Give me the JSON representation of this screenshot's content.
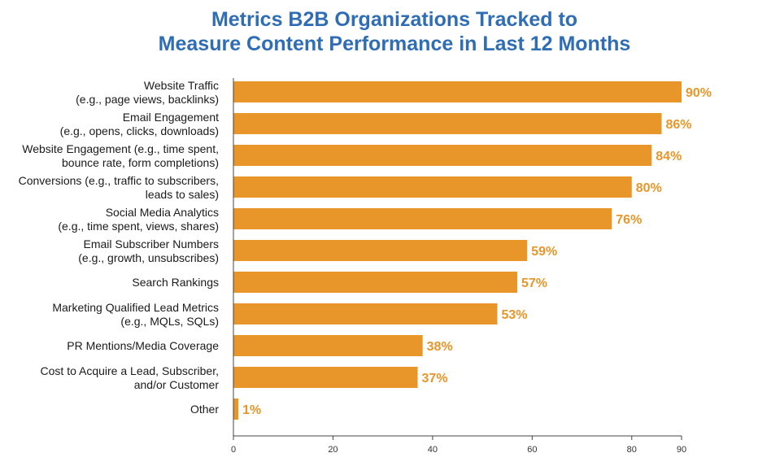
{
  "chart_data": {
    "type": "bar",
    "orientation": "horizontal",
    "title": [
      "Metrics B2B Organizations Tracked to",
      "Measure Content Performance in Last 12 Months"
    ],
    "categories": [
      [
        "Website Traffic",
        "(e.g., page views, backlinks)"
      ],
      [
        "Email Engagement",
        "(e.g., opens, clicks, downloads)"
      ],
      [
        "Website Engagement (e.g., time spent,",
        "bounce rate, form completions)"
      ],
      [
        "Conversions (e.g., traffic to subscribers,",
        "leads to sales)"
      ],
      [
        "Social Media Analytics",
        "(e.g., time spent, views, shares)"
      ],
      [
        "Email Subscriber Numbers",
        "(e.g., growth, unsubscribes)"
      ],
      [
        "Search Rankings"
      ],
      [
        "Marketing Qualified Lead Metrics",
        "(e.g., MQLs, SQLs)"
      ],
      [
        "PR Mentions/Media Coverage"
      ],
      [
        "Cost to Acquire a Lead, Subscriber,",
        "and/or Customer"
      ],
      [
        "Other"
      ]
    ],
    "values": [
      90,
      86,
      84,
      80,
      76,
      59,
      57,
      53,
      38,
      37,
      1
    ],
    "value_labels": [
      "90%",
      "86%",
      "84%",
      "80%",
      "76%",
      "59%",
      "57%",
      "53%",
      "38%",
      "37%",
      "1%"
    ],
    "xlim": [
      0,
      90
    ],
    "xticks": [
      0,
      20,
      40,
      60,
      80,
      90
    ],
    "xlabel": "",
    "ylabel": "",
    "grid": false,
    "colors": {
      "bar": "#e8962a",
      "value_label": "#e8962a",
      "title": "#2f6db5"
    }
  }
}
